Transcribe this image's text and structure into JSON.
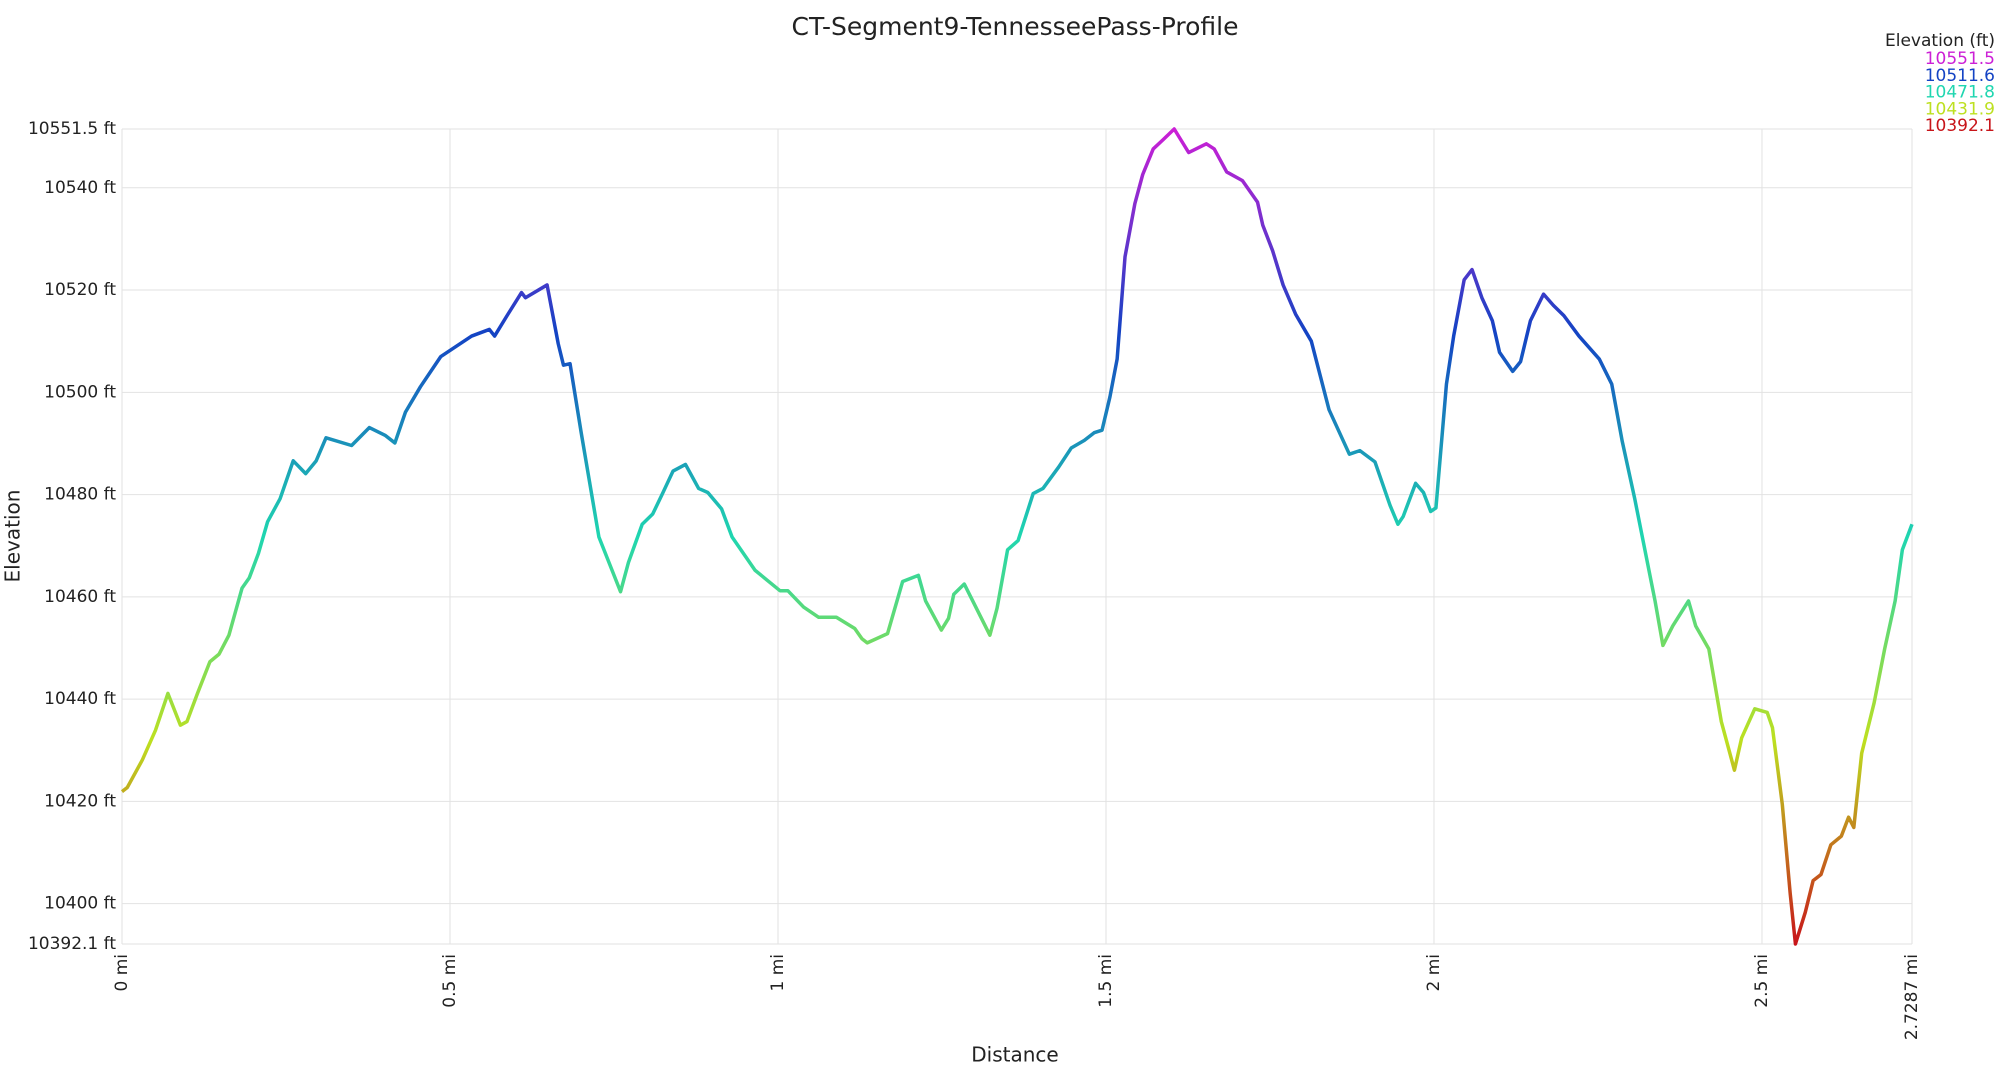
{
  "chart_data": {
    "type": "line",
    "title": "CT-Segment9-TennesseePass-Profile",
    "x_label": "Distance",
    "y_label": "Elevation",
    "x": [
      0,
      0.008,
      0.031,
      0.051,
      0.07,
      0.089,
      0.099,
      0.115,
      0.134,
      0.148,
      0.163,
      0.183,
      0.194,
      0.208,
      0.222,
      0.241,
      0.261,
      0.28,
      0.296,
      0.311,
      0.35,
      0.377,
      0.401,
      0.416,
      0.432,
      0.455,
      0.486,
      0.533,
      0.56,
      0.568,
      0.587,
      0.609,
      0.615,
      0.648,
      0.665,
      0.673,
      0.683,
      0.7,
      0.727,
      0.76,
      0.772,
      0.793,
      0.809,
      0.824,
      0.84,
      0.859,
      0.879,
      0.893,
      0.914,
      0.93,
      0.965,
      1.003,
      1.015,
      1.039,
      1.062,
      1.089,
      1.117,
      1.128,
      1.136,
      1.167,
      1.19,
      1.214,
      1.225,
      1.249,
      1.26,
      1.268,
      1.284,
      1.323,
      1.334,
      1.35,
      1.366,
      1.389,
      1.404,
      1.428,
      1.447,
      1.467,
      1.482,
      1.494,
      1.506,
      1.517,
      1.529,
      1.544,
      1.556,
      1.572,
      1.587,
      1.604,
      1.626,
      1.653,
      1.665,
      1.684,
      1.708,
      1.731,
      1.739,
      1.754,
      1.77,
      1.789,
      1.813,
      1.84,
      1.871,
      1.887,
      1.91,
      1.933,
      1.945,
      1.953,
      1.972,
      1.984,
      1.995,
      2.003,
      2.019,
      2.03,
      2.046,
      2.058,
      2.073,
      2.089,
      2.1,
      2.12,
      2.132,
      2.147,
      2.167,
      2.182,
      2.198,
      2.221,
      2.252,
      2.271,
      2.287,
      2.306,
      2.337,
      2.349,
      2.364,
      2.388,
      2.399,
      2.419,
      2.438,
      2.458,
      2.469,
      2.489,
      2.508,
      2.516,
      2.531,
      2.543,
      2.551,
      2.566,
      2.578,
      2.59,
      2.605,
      2.621,
      2.632,
      2.64,
      2.652,
      2.671,
      2.687,
      2.703,
      2.714,
      2.7287
    ],
    "values": [
      10421.9,
      10422.7,
      10428.1,
      10433.9,
      10441.1,
      10434.9,
      10435.6,
      10441.1,
      10447.3,
      10448.8,
      10452.5,
      10461.7,
      10463.7,
      10468.5,
      10474.7,
      10479.2,
      10486.6,
      10484.1,
      10486.6,
      10491.1,
      10489.6,
      10493.1,
      10491.6,
      10490.1,
      10496.1,
      10501.1,
      10507,
      10511,
      10512.3,
      10511,
      10515,
      10519.5,
      10518.5,
      10521,
      10509.5,
      10505.3,
      10505.6,
      10492.1,
      10471.7,
      10461,
      10466.7,
      10474.2,
      10476.2,
      10480.2,
      10484.6,
      10485.9,
      10481.2,
      10480.4,
      10477.2,
      10471.7,
      10465.2,
      10461.2,
      10461.2,
      10458,
      10456,
      10456,
      10453.8,
      10451.8,
      10451,
      10452.8,
      10463,
      10464.2,
      10459.2,
      10453.5,
      10455.8,
      10460.5,
      10462.5,
      10452.5,
      10457.8,
      10469.2,
      10471,
      10480.2,
      10481.2,
      10485.4,
      10489.1,
      10490.6,
      10492.1,
      10492.6,
      10499.1,
      10506.5,
      10526.5,
      10536.9,
      10542.6,
      10547.6,
      10549.4,
      10551.5,
      10546.9,
      10548.6,
      10547.6,
      10543.1,
      10541.4,
      10537.2,
      10532.7,
      10527.7,
      10521,
      10515.3,
      10510,
      10496.6,
      10487.9,
      10488.6,
      10486.4,
      10477.9,
      10474.2,
      10475.7,
      10482.2,
      10480.4,
      10476.7,
      10477.4,
      10501.6,
      10511,
      10522,
      10524,
      10518.5,
      10514,
      10507.8,
      10504.1,
      10506,
      10514,
      10519.2,
      10517,
      10515,
      10511,
      10506.5,
      10501.6,
      10490.4,
      10479.2,
      10459.2,
      10450.5,
      10454.3,
      10459.2,
      10454.3,
      10449.8,
      10435.6,
      10426.1,
      10432.4,
      10438.1,
      10437.4,
      10434.4,
      10419.4,
      10402,
      10392.1,
      10398.3,
      10404.5,
      10405.7,
      10411.5,
      10413.2,
      10416.9,
      10414.9,
      10429.4,
      10439.3,
      10449.8,
      10459.2,
      10469.2,
      10474.2
    ],
    "xlim": [
      0,
      2.7287
    ],
    "ylim": [
      10392.1,
      10551.5
    ],
    "xticks": [
      {
        "value": 0,
        "label": "0 mi"
      },
      {
        "value": 0.5,
        "label": "0.5 mi"
      },
      {
        "value": 1,
        "label": "1 mi"
      },
      {
        "value": 1.5,
        "label": "1.5 mi"
      },
      {
        "value": 2,
        "label": "2 mi"
      },
      {
        "value": 2.5,
        "label": "2.5 mi"
      },
      {
        "value": 2.7287,
        "label": "2.7287 mi"
      }
    ],
    "yticks": [
      {
        "value": 10392.1,
        "label": "10392.1 ft"
      },
      {
        "value": 10400,
        "label": "10400 ft"
      },
      {
        "value": 10420,
        "label": "10420 ft"
      },
      {
        "value": 10440,
        "label": "10440 ft"
      },
      {
        "value": 10460,
        "label": "10460 ft"
      },
      {
        "value": 10480,
        "label": "10480 ft"
      },
      {
        "value": 10500,
        "label": "10500 ft"
      },
      {
        "value": 10520,
        "label": "10520 ft"
      },
      {
        "value": 10540,
        "label": "10540 ft"
      },
      {
        "value": 10551.5,
        "label": "10551.5 ft"
      }
    ],
    "grid": true,
    "color_scale": {
      "title": "Elevation (ft)",
      "stops": [
        {
          "value": 10551.5,
          "color": "#cc1fd6"
        },
        {
          "value": 10511.6,
          "color": "#1443c4"
        },
        {
          "value": 10471.8,
          "color": "#1fd6b0"
        },
        {
          "value": 10431.9,
          "color": "#bde020"
        },
        {
          "value": 10392.1,
          "color": "#c8151a"
        }
      ]
    }
  }
}
